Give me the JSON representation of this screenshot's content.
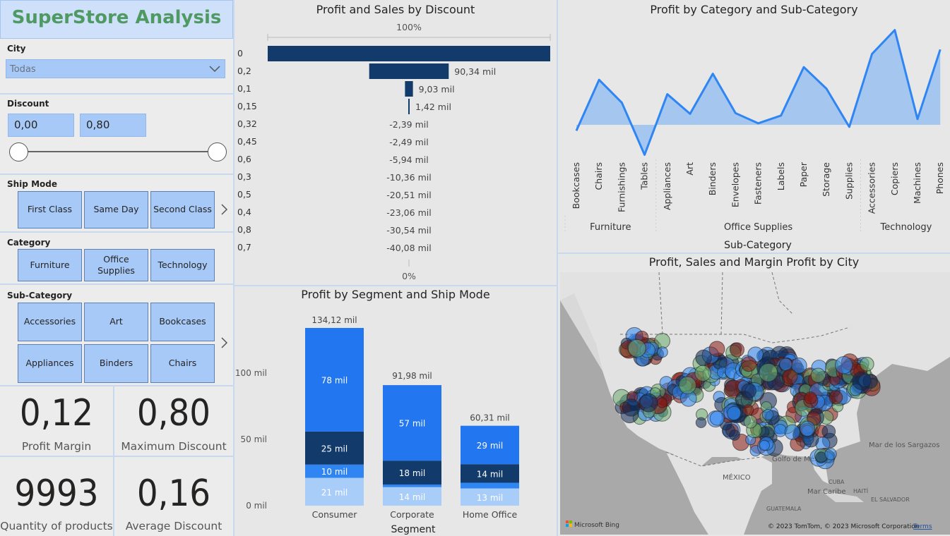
{
  "app": {
    "title": "SuperStore Analysis"
  },
  "filters": {
    "city": {
      "label": "City",
      "value": "Todas"
    },
    "discount": {
      "label": "Discount",
      "min": "0,00",
      "max": "0,80"
    },
    "ship_mode": {
      "label": "Ship Mode",
      "options": [
        "First Class",
        "Same Day",
        "Second Class"
      ]
    },
    "category": {
      "label": "Category",
      "options": [
        "Furniture",
        "Office Supplies",
        "Technology"
      ]
    },
    "sub_category": {
      "label": "Sub-Category",
      "options": [
        "Accessories",
        "Art",
        "Bookcases",
        "Appliances",
        "Binders",
        "Chairs"
      ]
    }
  },
  "kpis": [
    {
      "value": "0,12",
      "label": "Profit Margin"
    },
    {
      "value": "0,80",
      "label": "Maximum Discount"
    },
    {
      "value": "9993",
      "label": "Quantity of products"
    },
    {
      "value": "0,16",
      "label": "Average Discount"
    }
  ],
  "funnel": {
    "title": "Profit and Sales by Discount",
    "top_label": "100%",
    "bottom_label": "0%",
    "color": "#123a6b"
  },
  "segment": {
    "title": "Profit by Segment and Ship Mode",
    "colors": [
      "#a9cdf9",
      "#2f86f3",
      "#123a6b",
      "#2277f0"
    ]
  },
  "category_chart": {
    "title": "Profit by Category and Sub-Category",
    "line_color": "#2f86f3",
    "fill_color": "#9cc2f0"
  },
  "map": {
    "title": "Profit, Sales and Margin Profit by City",
    "labels": {
      "mexico": "MÉXICO",
      "gulf": "Golfo de México",
      "sargasso": "Mar de los Sargazos",
      "caribbean": "Mar Caribe",
      "guatemala": "GUATEMALA",
      "cuba": "CUBA",
      "haiti": "HAITÍ",
      "elsalvador": "EL SALVADOR"
    },
    "attribution": "© 2023 TomTom, © 2023 Microsoft Corporation",
    "terms": "Terms",
    "bing": "Microsoft Bing",
    "bubble_colors": [
      "#2f86f3",
      "#8b1a10",
      "#69ab6e",
      "#0f2a55"
    ]
  },
  "chart_data": [
    {
      "type": "bar",
      "title": "Profit and Sales by Discount",
      "categories": [
        "0",
        "0,2",
        "0,1",
        "0,15",
        "0,32",
        "0,45",
        "0,6",
        "0,3",
        "0,5",
        "0,4",
        "0,8",
        "0,7"
      ],
      "values": [
        320.99,
        90.34,
        9.03,
        1.42,
        -2.39,
        -2.49,
        -5.94,
        -10.36,
        -20.51,
        -23.06,
        -30.54,
        -40.08
      ],
      "value_labels": [
        "",
        "90,34 mil",
        "9,03 mil",
        "1,42 mil",
        "-2,39 mil",
        "-2,49 mil",
        "-5,94 mil",
        "-10,36 mil",
        "-20,51 mil",
        "-23,06 mil",
        "-30,54 mil",
        "-40,08 mil"
      ]
    },
    {
      "type": "bar",
      "title": "Profit by Segment and Ship Mode",
      "xlabel": "Segment",
      "categories": [
        "Consumer",
        "Corporate",
        "Home Office"
      ],
      "y_ticks": [
        "0 mil",
        "50 mil",
        "100 mil"
      ],
      "ylim": [
        0,
        140
      ],
      "totals": [
        "134,12 mil",
        "91,98 mil",
        "60,31 mil"
      ],
      "total_values": [
        134.12,
        91.98,
        60.31
      ],
      "series": [
        {
          "values": [
            21,
            14,
            13
          ],
          "labels": [
            "21 mil",
            "14 mil",
            "13 mil"
          ]
        },
        {
          "values": [
            10,
            1.98,
            4.31
          ],
          "labels": [
            "10 mil",
            "",
            ""
          ]
        },
        {
          "values": [
            25,
            18,
            14
          ],
          "labels": [
            "25 mil",
            "18 mil",
            "14 mil"
          ]
        },
        {
          "values": [
            78.12,
            57,
            29
          ],
          "labels": [
            "78 mil",
            "57 mil",
            "29 mil"
          ]
        }
      ]
    },
    {
      "type": "area",
      "title": "Profit by Category and Sub-Category",
      "xlabel": "Sub-Category",
      "groups": [
        {
          "name": "Furniture",
          "items": [
            "Bookcases",
            "Chairs",
            "Furnishings",
            "Tables"
          ]
        },
        {
          "name": "Office Supplies",
          "items": [
            "Appliances",
            "Art",
            "Binders",
            "Envelopes",
            "Fasteners",
            "Labels",
            "Paper",
            "Storage",
            "Supplies"
          ]
        },
        {
          "name": "Technology",
          "items": [
            "Accessories",
            "Copiers",
            "Machines",
            "Phones"
          ]
        }
      ],
      "values": [
        -3.5,
        26.6,
        13.1,
        -17.7,
        18.1,
        6.5,
        30.2,
        6.9,
        0.9,
        5.5,
        34.1,
        21.3,
        -1.2,
        41.9,
        56.0,
        3.4,
        44.5
      ]
    }
  ]
}
